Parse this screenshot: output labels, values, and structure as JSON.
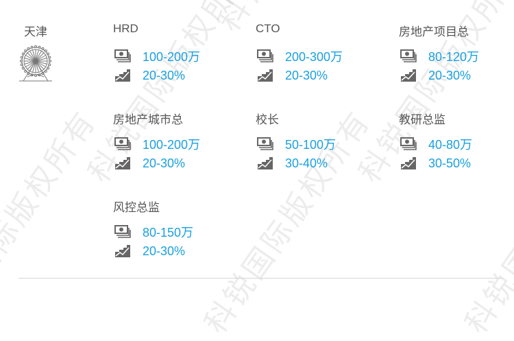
{
  "city": "天津",
  "watermark": "科锐国际版权所有",
  "jobs": [
    {
      "title": "HRD",
      "salary": "100-200万",
      "growth": "20-30%"
    },
    {
      "title": "CTO",
      "salary": "200-300万",
      "growth": "20-30%"
    },
    {
      "title": "房地产项目总",
      "salary": "80-120万",
      "growth": "20-30%"
    },
    {
      "title": "房地产城市总",
      "salary": "100-200万",
      "growth": "20-30%"
    },
    {
      "title": "校长",
      "salary": "50-100万",
      "growth": "30-40%"
    },
    {
      "title": "教研总监",
      "salary": "40-80万",
      "growth": "30-50%"
    },
    {
      "title": "风控总监",
      "salary": "80-150万",
      "growth": "20-30%"
    }
  ],
  "colors": {
    "value": "#1aa0e0",
    "title": "#555555",
    "icon": "#666666"
  },
  "icons": {
    "city": "ferris-wheel-icon",
    "salary": "money-icon",
    "growth": "growth-chart-icon"
  }
}
